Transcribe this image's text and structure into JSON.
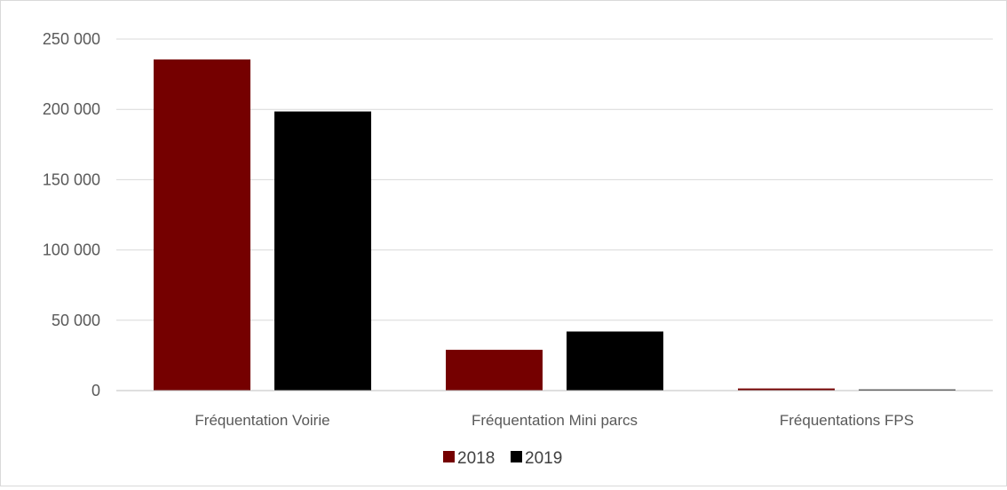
{
  "chart_data": {
    "type": "bar",
    "categories": [
      "Fréquentation Voirie",
      "Fréquentation Mini parcs",
      "Fréquentations FPS"
    ],
    "series": [
      {
        "name": "2018",
        "values": [
          235500,
          29000,
          1500
        ],
        "color": "#750000"
      },
      {
        "name": "2019",
        "values": [
          198500,
          42000,
          800
        ],
        "color": "#000000"
      }
    ],
    "yticks": [
      0,
      50000,
      100000,
      150000,
      200000,
      250000
    ],
    "ytick_labels": [
      "0",
      "50 000",
      "100 000",
      "150 000",
      "200 000",
      "250 000"
    ],
    "ylim": [
      0,
      250000
    ],
    "grid": true,
    "gridline_color": "#d9d9d9",
    "legend_position": "bottom"
  }
}
